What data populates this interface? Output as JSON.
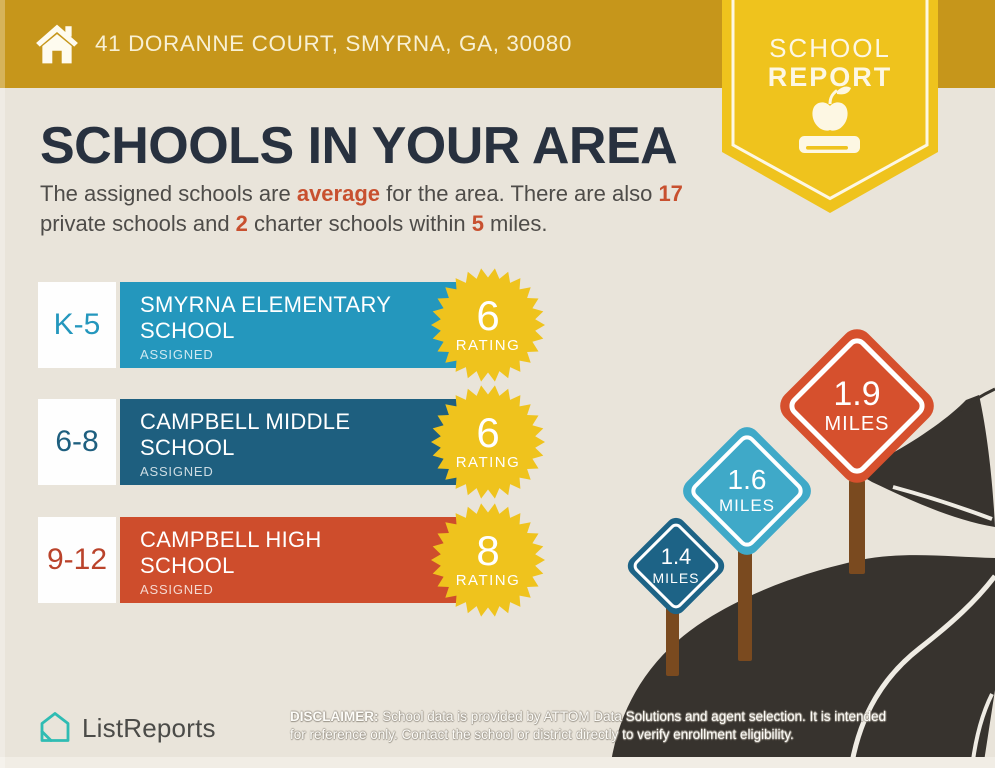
{
  "header": {
    "address": "41 DORANNE COURT, SMYRNA, GA, 30080"
  },
  "badge": {
    "line1": "SCHOOL",
    "line2": "REPORT"
  },
  "intro": {
    "title": "SCHOOLS IN YOUR AREA",
    "line1_pre": "The assigned schools are ",
    "line1_accent1": "average",
    "line1_mid": " for the area. There are also ",
    "line1_accent2": "17",
    "line2_pre": "private schools and ",
    "line2_accent1": "2",
    "line2_mid": " charter schools within ",
    "line2_accent2": "5",
    "line2_post": " miles."
  },
  "schools": [
    {
      "grades": "K-5",
      "name_line1": "SMYRNA ELEMENTARY",
      "name_line2": "SCHOOL",
      "status": "ASSIGNED",
      "rating": "6",
      "rating_label": "RATING",
      "bar_color": "#2497BD",
      "grade_color": "#2497BD"
    },
    {
      "grades": "6-8",
      "name_line1": "CAMPBELL MIDDLE",
      "name_line2": "SCHOOL",
      "status": "ASSIGNED",
      "rating": "6",
      "rating_label": "RATING",
      "bar_color": "#1E5F7F",
      "grade_color": "#1E5F7F"
    },
    {
      "grades": "9-12",
      "name_line1": "CAMPBELL HIGH",
      "name_line2": "SCHOOL",
      "status": "ASSIGNED",
      "rating": "8",
      "rating_label": "RATING",
      "bar_color": "#CE4D2C",
      "grade_color": "#BA432B"
    }
  ],
  "signs": [
    {
      "value": "1.4",
      "unit": "MILES",
      "color": "#1D6386"
    },
    {
      "value": "1.6",
      "unit": "MILES",
      "color": "#3FA9C8"
    },
    {
      "value": "1.9",
      "unit": "MILES",
      "color": "#D6502D"
    }
  ],
  "footer": {
    "brand": "ListReports",
    "disclaimer_label": "DISCLAIMER:",
    "disclaimer_line1": " School data is provided by ATTOM Data Solutions and agent selection. It is intended",
    "disclaimer_line2": "for reference only. Contact the school or district directly to verify enrollment eligibility."
  },
  "colors": {
    "header_gold": "#C6961B",
    "badge_yellow": "#EFC31D",
    "star_yellow": "#EFC31D",
    "background": "#E9E4DA",
    "road": "#37332E",
    "post_brown": "#7A4A1F",
    "title_navy": "#28313F",
    "accent_orange": "#C8502F",
    "brand_teal": "#2FBCB3"
  }
}
